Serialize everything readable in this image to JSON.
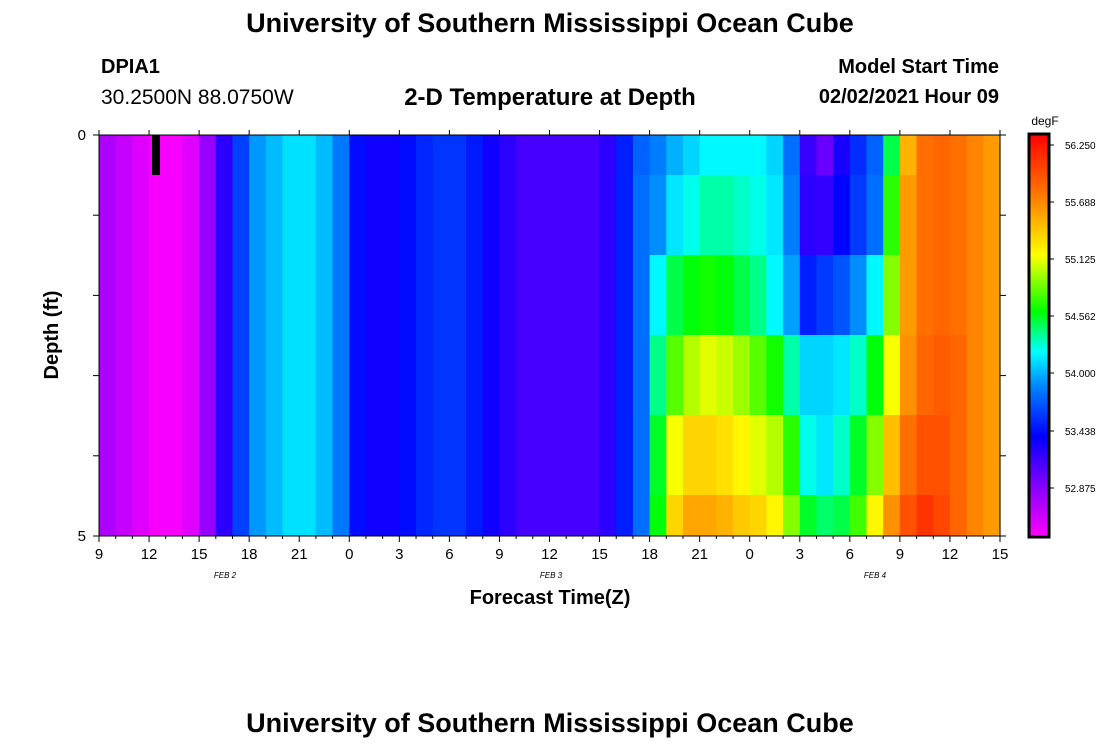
{
  "page": {
    "top_title": "University of Southern Mississippi Ocean Cube",
    "bottom_title": "University of Southern Mississippi Ocean Cube",
    "station_id": "DPIA1",
    "station_coords": "30.2500N 88.0750W",
    "model_start_label": "Model Start Time",
    "model_start_time": "02/02/2021 Hour 09"
  },
  "chart_data": {
    "type": "heatmap",
    "title": "2-D Temperature at Depth",
    "xlabel": "Forecast Time(Z)",
    "ylabel": "Depth (ft)",
    "x_tick_labels": [
      "9",
      "12",
      "15",
      "18",
      "21",
      "0",
      "3",
      "6",
      "9",
      "12",
      "15",
      "18",
      "21",
      "0",
      "3",
      "6",
      "9",
      "12",
      "15"
    ],
    "x_day_labels": [
      "FEB 2",
      "FEB 3",
      "FEB 4"
    ],
    "y_tick_labels": [
      "0",
      "5"
    ],
    "ylim": [
      0,
      5
    ],
    "colorbar": {
      "unit": "degF",
      "tick_labels": [
        "56.250",
        "55.688",
        "55.125",
        "54.562",
        "54.000",
        "53.438",
        "52.875"
      ],
      "min": 52.3,
      "max": 56.25
    },
    "hours": [
      9,
      10,
      11,
      12,
      13,
      14,
      15,
      16,
      17,
      18,
      19,
      20,
      21,
      22,
      23,
      0,
      1,
      2,
      3,
      4,
      5,
      6,
      7,
      8,
      9,
      10,
      11,
      12,
      13,
      14,
      15,
      16,
      17,
      18,
      19,
      20,
      21,
      22,
      23,
      0,
      1,
      2,
      3,
      4,
      5,
      6,
      7,
      8,
      9,
      10,
      11,
      12,
      13,
      14
    ],
    "depth_bands": [
      "0-0.5",
      "0.5-1.5",
      "1.5-2.5",
      "2.5-3.5",
      "3.5-4.5",
      "4.5-5"
    ],
    "temperature": [
      [
        52.63,
        52.53,
        52.43,
        52.33,
        52.33,
        52.43,
        52.73,
        53.13,
        53.53,
        53.83,
        53.93,
        54.03,
        54.03,
        53.93,
        53.73,
        53.33,
        53.23,
        53.23,
        53.33,
        53.43,
        53.48,
        53.48,
        53.38,
        53.23,
        53.13,
        53.03,
        53.03,
        53.03,
        53.03,
        53.03,
        53.13,
        53.4,
        53.65,
        53.75,
        53.9,
        54.0,
        54.1,
        54.1,
        54.1,
        54.1,
        54.0,
        53.7,
        53.08,
        52.9,
        53.2,
        53.45,
        53.65,
        54.4,
        55.4,
        55.7,
        55.75,
        55.7,
        55.6,
        55.5
      ],
      [
        52.63,
        52.53,
        52.43,
        52.33,
        52.33,
        52.43,
        52.73,
        53.13,
        53.53,
        53.83,
        53.93,
        54.03,
        54.03,
        53.93,
        53.73,
        53.33,
        53.23,
        53.23,
        53.33,
        53.43,
        53.48,
        53.48,
        53.38,
        53.23,
        53.13,
        53.03,
        53.03,
        53.03,
        53.03,
        53.03,
        53.13,
        53.4,
        53.7,
        53.8,
        54.05,
        54.15,
        54.25,
        54.25,
        54.2,
        54.15,
        54.05,
        53.75,
        53.13,
        53.1,
        53.3,
        53.5,
        53.7,
        54.6,
        55.5,
        55.7,
        55.75,
        55.7,
        55.6,
        55.5
      ],
      [
        52.63,
        52.53,
        52.43,
        52.33,
        52.33,
        52.43,
        52.73,
        53.13,
        53.53,
        53.83,
        53.93,
        54.03,
        54.03,
        53.93,
        53.73,
        53.33,
        53.23,
        53.23,
        53.33,
        53.43,
        53.48,
        53.48,
        53.38,
        53.23,
        53.13,
        53.03,
        53.03,
        53.03,
        53.03,
        53.03,
        53.13,
        53.4,
        53.7,
        54.1,
        54.4,
        54.5,
        54.55,
        54.5,
        54.4,
        54.3,
        54.1,
        53.85,
        53.4,
        53.5,
        53.6,
        53.8,
        54.1,
        54.8,
        55.5,
        55.7,
        55.75,
        55.7,
        55.6,
        55.5
      ],
      [
        52.63,
        52.53,
        52.43,
        52.33,
        52.33,
        52.43,
        52.73,
        53.13,
        53.53,
        53.83,
        53.93,
        54.03,
        54.03,
        53.93,
        53.73,
        53.33,
        53.23,
        53.23,
        53.33,
        53.43,
        53.48,
        53.48,
        53.38,
        53.23,
        53.13,
        53.03,
        53.03,
        53.03,
        53.03,
        53.03,
        53.13,
        53.4,
        53.7,
        54.3,
        54.7,
        54.9,
        55.0,
        54.95,
        54.85,
        54.7,
        54.55,
        54.25,
        54.0,
        54.0,
        54.05,
        54.2,
        54.5,
        55.05,
        55.55,
        55.75,
        55.8,
        55.75,
        55.6,
        55.5
      ],
      [
        52.63,
        52.53,
        52.43,
        52.33,
        52.33,
        52.43,
        52.73,
        53.13,
        53.53,
        53.83,
        53.93,
        54.03,
        54.03,
        53.93,
        53.73,
        53.33,
        53.23,
        53.23,
        53.33,
        53.43,
        53.48,
        53.48,
        53.38,
        53.23,
        53.13,
        53.03,
        53.03,
        53.03,
        53.03,
        53.03,
        53.13,
        53.4,
        53.7,
        54.45,
        55.05,
        55.25,
        55.25,
        55.2,
        55.1,
        55.0,
        54.9,
        54.6,
        54.15,
        54.05,
        54.2,
        54.45,
        54.8,
        55.35,
        55.7,
        55.85,
        55.85,
        55.75,
        55.6,
        55.5
      ],
      [
        52.63,
        52.53,
        52.43,
        52.33,
        52.33,
        52.43,
        52.73,
        53.13,
        53.53,
        53.83,
        53.93,
        54.03,
        54.03,
        53.93,
        53.73,
        53.33,
        53.23,
        53.23,
        53.33,
        53.43,
        53.48,
        53.48,
        53.38,
        53.23,
        53.13,
        53.03,
        53.03,
        53.03,
        53.03,
        53.03,
        53.13,
        53.4,
        53.7,
        54.5,
        55.25,
        55.45,
        55.45,
        55.4,
        55.3,
        55.25,
        55.1,
        54.8,
        54.45,
        54.35,
        54.4,
        54.65,
        55.1,
        55.55,
        55.85,
        56.0,
        55.9,
        55.75,
        55.6,
        55.5
      ]
    ]
  }
}
